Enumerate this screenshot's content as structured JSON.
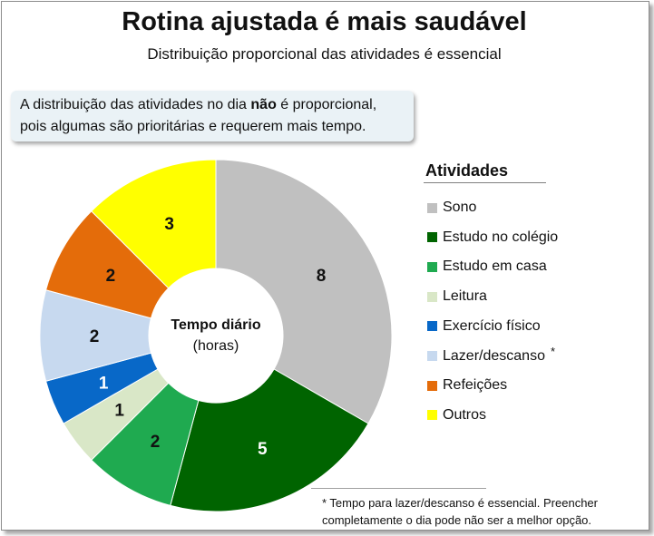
{
  "title": "Rotina ajustada é mais saudável",
  "subtitle": "Distribuição proporcional das atividades é essencial",
  "note": {
    "line1_before": "A distribuição das atividades no dia ",
    "line1_bold": "não",
    "line1_after": " é proporcional,",
    "line2": "pois algumas são prioritárias e requerem mais tempo."
  },
  "center_label": {
    "line1": "Tempo diário",
    "line2": "(horas)"
  },
  "legend_title": "Atividades",
  "legend_asterisk": "*",
  "footnote": {
    "line1": "* Tempo para lazer/descanso é essencial. Preencher",
    "line2": "completamente o dia pode não ser a melhor opção."
  },
  "chart_data": {
    "type": "pie",
    "title": "Rotina ajustada é mais saudável",
    "subtitle": "Distribuição proporcional das atividades é essencial",
    "unit": "horas",
    "legend_placement": "right",
    "categories": [
      "Sono",
      "Estudo no colégio",
      "Estudo em casa",
      "Leitura",
      "Exercício físico",
      "Lazer/descanso",
      "Refeições",
      "Outros"
    ],
    "values": [
      8,
      5,
      2,
      1,
      1,
      2,
      2,
      3
    ],
    "colors": [
      "#c0c0c0",
      "#006400",
      "#1faa50",
      "#d9e7c7",
      "#0868c8",
      "#c7d9ef",
      "#e46c0a",
      "#ffff00"
    ]
  }
}
